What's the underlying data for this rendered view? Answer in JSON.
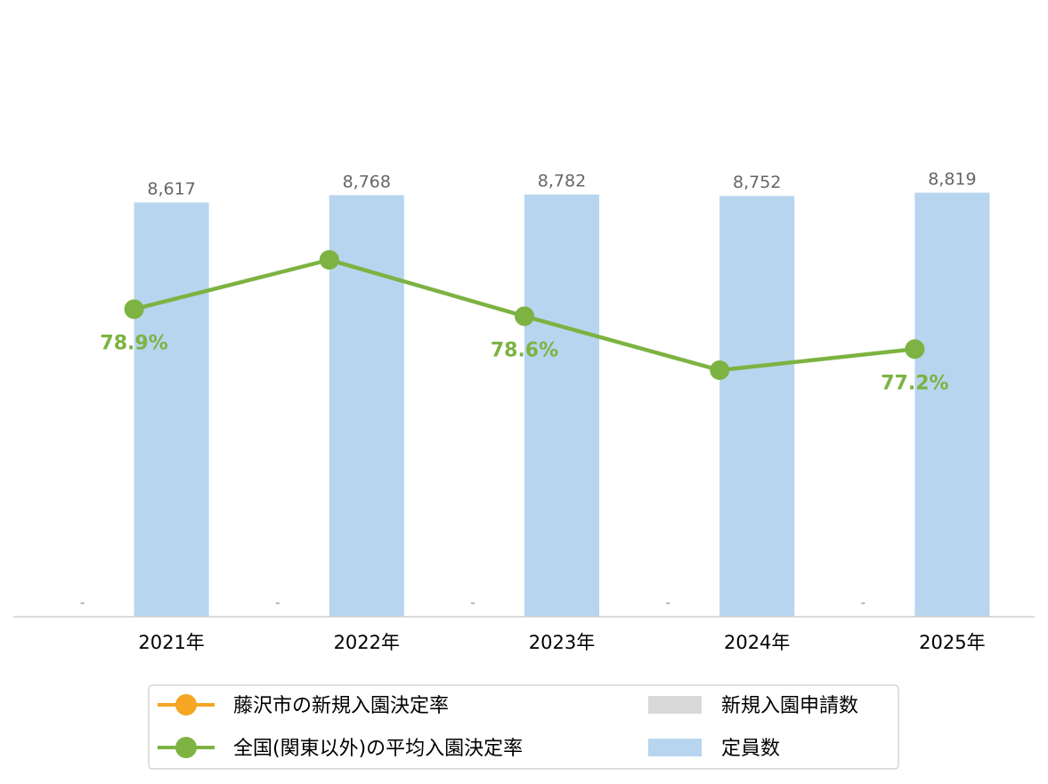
{
  "chart_data": {
    "type": "bar",
    "categories": [
      "2021年",
      "2022年",
      "2023年",
      "2024年",
      "2025年"
    ],
    "series": [
      {
        "name": "藤沢市の新規入園決定率",
        "kind": "line",
        "color": "#F5A623",
        "values": [
          null,
          null,
          null,
          null,
          null
        ]
      },
      {
        "name": "全国(関東以外)の平均入園決定率",
        "kind": "line",
        "color": "#7CB342",
        "values": [
          0.789,
          0.81,
          0.786,
          0.763,
          0.772
        ],
        "labels": [
          "78.9%",
          null,
          "78.6%",
          null,
          "77.2%"
        ]
      },
      {
        "name": "新規入園申請数",
        "kind": "bar",
        "color": "#D9D9D9",
        "values": [
          null,
          null,
          null,
          null,
          null
        ],
        "labels": [
          "-",
          "-",
          "-",
          "-",
          "-"
        ]
      },
      {
        "name": "定員数",
        "kind": "bar",
        "color": "#B7D5EF",
        "values": [
          8617,
          8768,
          8782,
          8752,
          8819
        ],
        "labels": [
          "8,617",
          "8,768",
          "8,782",
          "8,752",
          "8,819"
        ]
      }
    ],
    "legend": "bottom",
    "grid": false
  }
}
